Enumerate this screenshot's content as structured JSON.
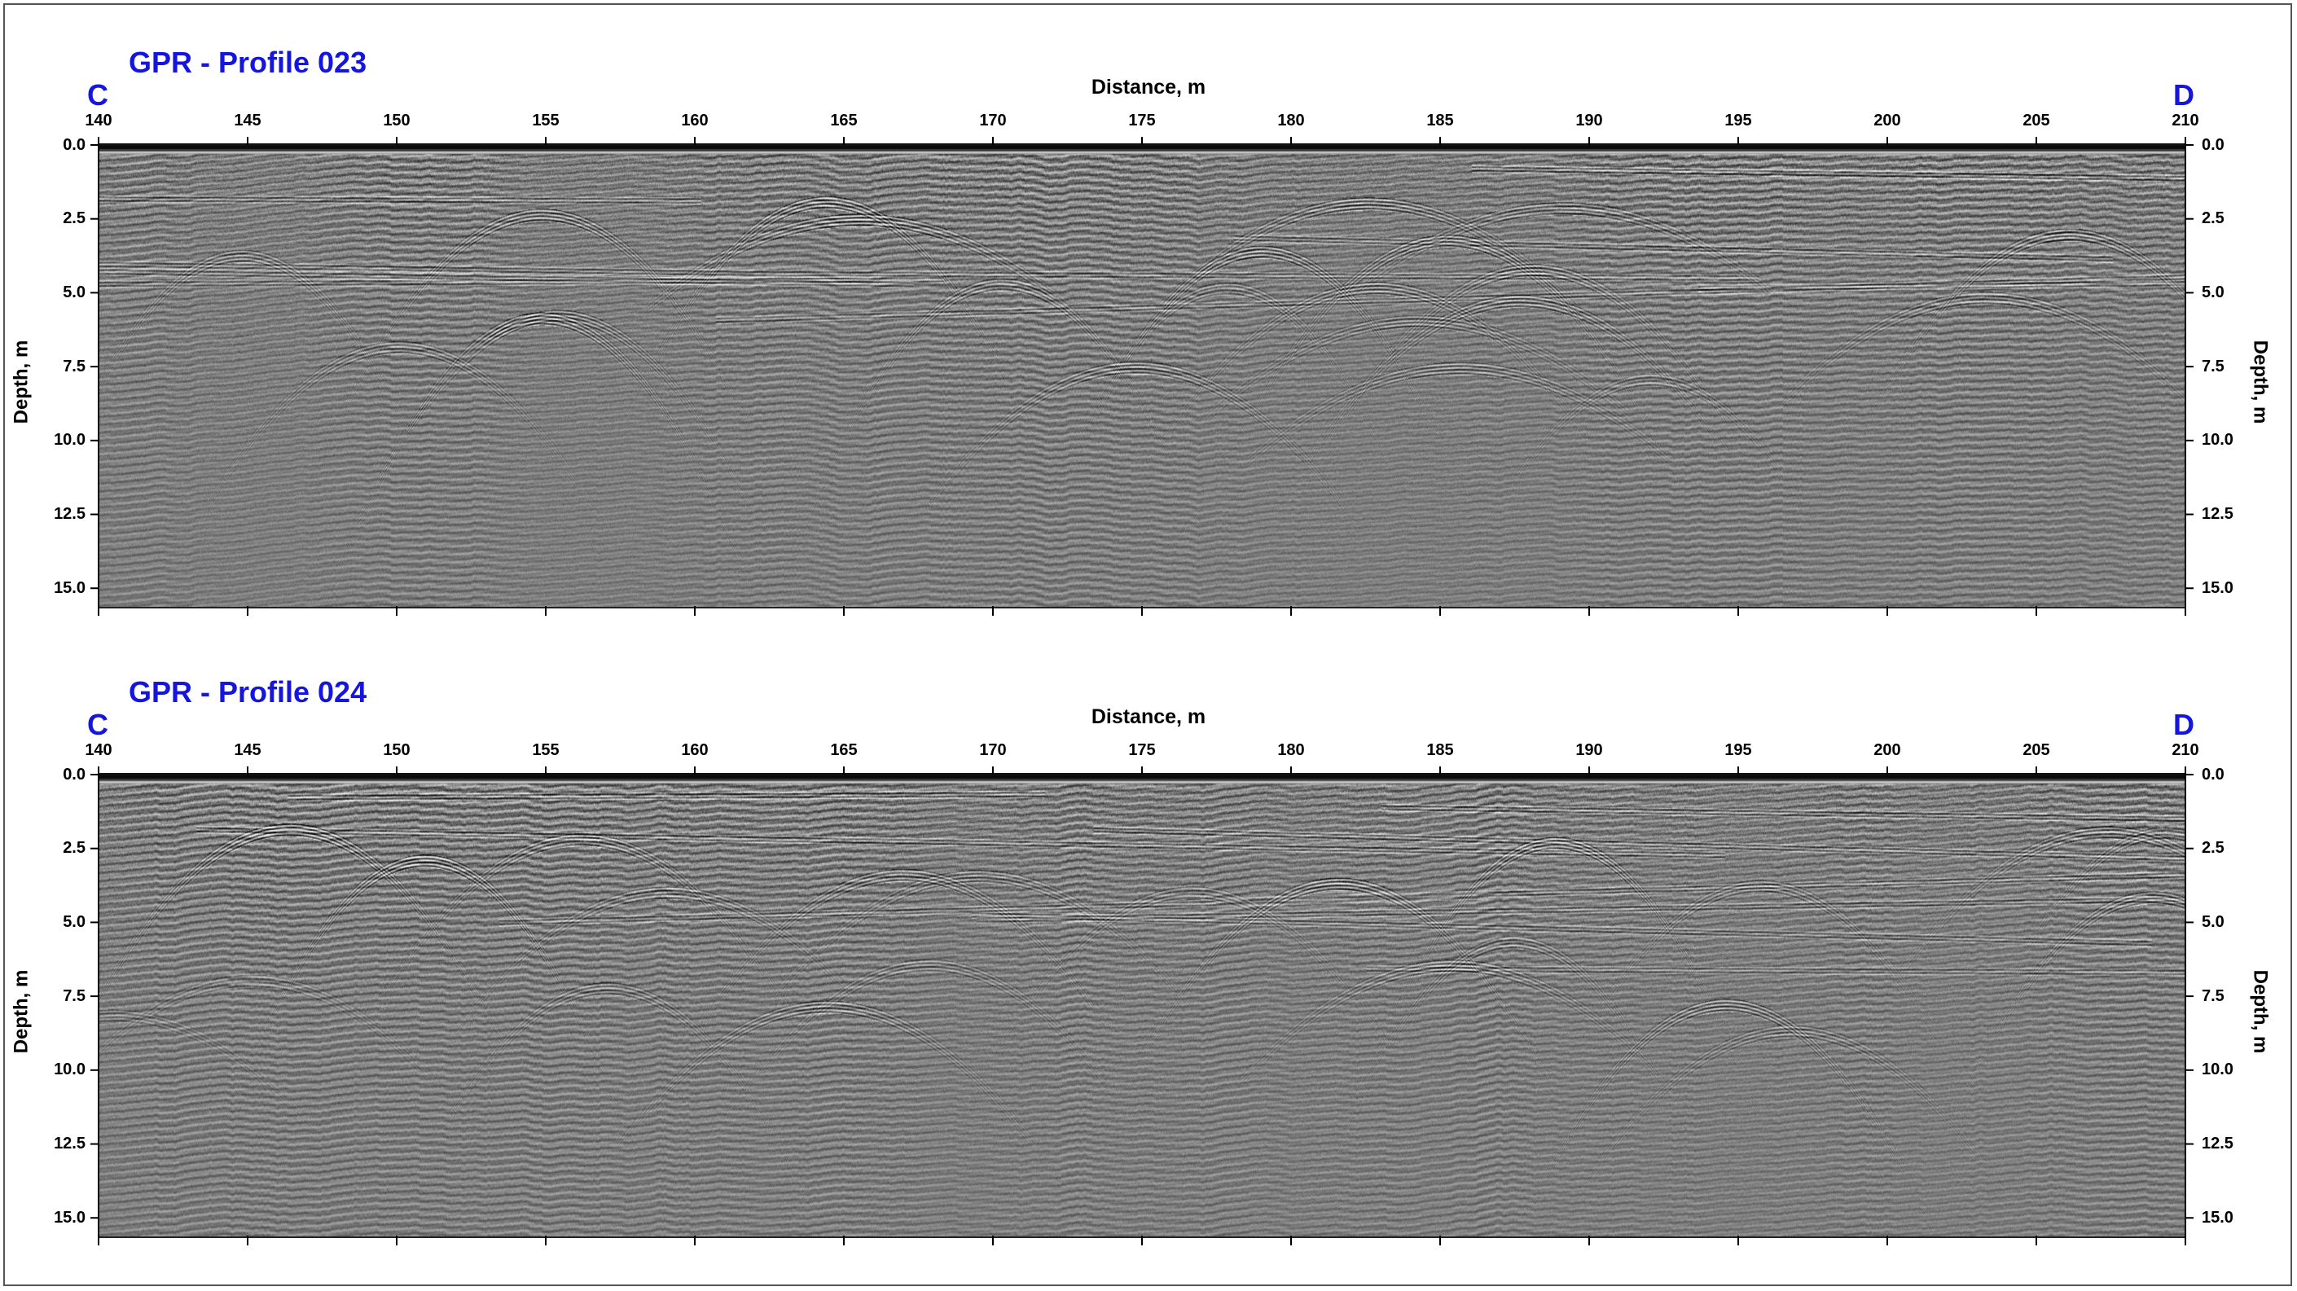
{
  "chart_data": [
    {
      "type": "heatmap",
      "title": "GPR - Profile 023",
      "start_label": "C",
      "end_label": "D",
      "xlabel": "Distance, m",
      "ylabel": "Depth, m",
      "xlim": [
        140,
        210
      ],
      "ylim": [
        0.0,
        15.6
      ],
      "x_ticks": [
        "140",
        "145",
        "150",
        "155",
        "160",
        "165",
        "170",
        "175",
        "180",
        "185",
        "190",
        "195",
        "200",
        "205",
        "210"
      ],
      "y_ticks": [
        "0.0",
        "2.5",
        "5.0",
        "7.5",
        "10.0",
        "12.5",
        "15.0"
      ],
      "y_inverted": true,
      "colormap": "grayscale",
      "grid": false
    },
    {
      "type": "heatmap",
      "title": "GPR - Profile 024",
      "start_label": "C",
      "end_label": "D",
      "xlabel": "Distance, m",
      "ylabel": "Depth, m",
      "xlim": [
        140,
        210
      ],
      "ylim": [
        0.0,
        15.6
      ],
      "x_ticks": [
        "140",
        "145",
        "150",
        "155",
        "160",
        "165",
        "170",
        "175",
        "180",
        "185",
        "190",
        "195",
        "200",
        "205",
        "210"
      ],
      "y_ticks": [
        "0.0",
        "2.5",
        "5.0",
        "7.5",
        "10.0",
        "12.5",
        "15.0"
      ],
      "y_inverted": true,
      "colormap": "grayscale",
      "grid": false
    }
  ],
  "colors": {
    "title": "#1515e0",
    "axis": "#000000",
    "frame": "#555555"
  }
}
